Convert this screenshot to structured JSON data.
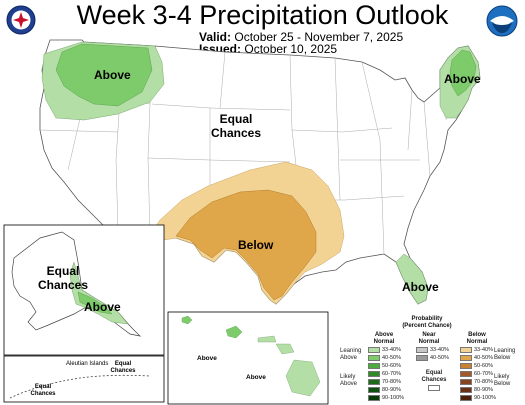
{
  "header": {
    "title": "Week 3-4 Precipitation Outlook",
    "valid_label": "Valid:",
    "valid_value": "October 25 - November 7, 2025",
    "issued_label": "Issued:",
    "issued_value": "October 10, 2025"
  },
  "logos": {
    "left": "NWS",
    "right": "NOAA"
  },
  "map_labels": {
    "northwest": "Above",
    "center_line1": "Equal",
    "center_line2": "Chances",
    "northeast": "Above",
    "south": "Below",
    "florida": "Above",
    "alaska_eq_line1": "Equal",
    "alaska_eq_line2": "Chances",
    "alaska_above": "Above",
    "aleutian": "Aleutian Islands",
    "aleutian_eq_line1": "Equal",
    "aleutian_eq_line2": "Chances",
    "aleutian_eq2_line1": "Equal",
    "aleutian_eq2_line2": "Chances",
    "hawaii_above1": "Above",
    "hawaii_above2": "Above"
  },
  "legend": {
    "title_line1": "Probability",
    "title_line2": "(Percent Chance)",
    "above_header_line1": "Above",
    "above_header_line2": "Normal",
    "near_header_line1": "Near",
    "near_header_line2": "Normal",
    "below_header_line1": "Below",
    "below_header_line2": "Normal",
    "leaning_above_line1": "Leaning",
    "leaning_above_line2": "Above",
    "likely_above_line1": "Likely",
    "likely_above_line2": "Above",
    "leaning_below_line1": "Leaning",
    "leaning_below_line2": "Below",
    "likely_below_line1": "Likely",
    "likely_below_line2": "Below",
    "equal_chances_line1": "Equal",
    "equal_chances_line2": "Chances",
    "above_ranges": [
      "33-40%",
      "40-50%",
      "50-60%",
      "60-70%",
      "70-80%",
      "80-90%",
      "90-100%"
    ],
    "above_colors": [
      "#b3dea6",
      "#7ecb6c",
      "#4bae3c",
      "#2e8b26",
      "#1c6b17",
      "#0f5210",
      "#063a07"
    ],
    "near_ranges": [
      "33-40%",
      "40-50%"
    ],
    "near_colors": [
      "#c8c8c8",
      "#9a9a9a"
    ],
    "below_ranges": [
      "33-40%",
      "40-50%",
      "50-60%",
      "60-70%",
      "70-80%",
      "80-90%",
      "90-100%"
    ],
    "below_colors": [
      "#f3d394",
      "#e0a64a",
      "#c88232",
      "#a4592a",
      "#86451f",
      "#6a3115",
      "#4d200b"
    ]
  }
}
